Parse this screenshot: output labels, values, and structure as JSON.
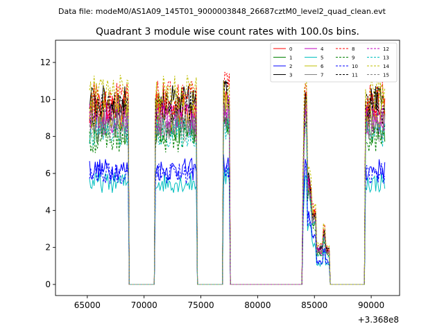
{
  "chart_data": {
    "type": "line",
    "header": "Data file: modeM0/AS1A09_145T01_9000003848_26687cztM0_level2_quad_clean.evt",
    "title": "Quadrant 3 module wise count rates with 100.0s bins.",
    "xlabel": "",
    "ylabel": "",
    "x_offset_label": "+3.368e8",
    "xlim": [
      62200,
      92500
    ],
    "ylim": [
      -0.6,
      13.2
    ],
    "x_ticks": [
      65000,
      70000,
      75000,
      80000,
      85000,
      90000
    ],
    "x_tick_labels": [
      "65000",
      "70000",
      "75000",
      "80000",
      "85000",
      "90000"
    ],
    "y_ticks": [
      0,
      2,
      4,
      6,
      8,
      10,
      12
    ],
    "y_tick_labels": [
      "0",
      "2",
      "4",
      "6",
      "8",
      "10",
      "12"
    ],
    "legend_position": "top-right",
    "grid": false,
    "time_segments": [
      {
        "start": 65200,
        "end": 68600
      },
      {
        "start": 71000,
        "end": 74600
      },
      {
        "start": 77000,
        "end": 77500
      },
      {
        "start": 84000,
        "end": 86300
      },
      {
        "start": 89500,
        "end": 91200
      }
    ],
    "series": [
      {
        "name": "0",
        "color": "#ff0000",
        "style": "solid",
        "level": 9.5
      },
      {
        "name": "1",
        "color": "#008000",
        "style": "solid",
        "level": 8.4
      },
      {
        "name": "2",
        "color": "#0000ff",
        "style": "solid",
        "level": 6.2
      },
      {
        "name": "3",
        "color": "#000000",
        "style": "solid",
        "level": 9.8
      },
      {
        "name": "4",
        "color": "#bf00bf",
        "style": "solid",
        "level": 8.9
      },
      {
        "name": "5",
        "color": "#00bfbf",
        "style": "solid",
        "level": 5.5
      },
      {
        "name": "6",
        "color": "#bfbf00",
        "style": "solid",
        "level": 9.2
      },
      {
        "name": "7",
        "color": "#808080",
        "style": "solid",
        "level": 8.7
      },
      {
        "name": "8",
        "color": "#ff0000",
        "style": "dashed",
        "level": 10.0
      },
      {
        "name": "9",
        "color": "#008000",
        "style": "dashed",
        "level": 7.9
      },
      {
        "name": "10",
        "color": "#0000ff",
        "style": "dashed",
        "level": 6.0
      },
      {
        "name": "11",
        "color": "#000000",
        "style": "dashed",
        "level": 9.6
      },
      {
        "name": "12",
        "color": "#bf00bf",
        "style": "dashed",
        "level": 9.0
      },
      {
        "name": "13",
        "color": "#00bfbf",
        "style": "dashed",
        "level": 8.2
      },
      {
        "name": "14",
        "color": "#bfbf00",
        "style": "dashed",
        "level": 10.3
      },
      {
        "name": "15",
        "color": "#808080",
        "style": "dashed",
        "level": 8.5
      }
    ]
  }
}
